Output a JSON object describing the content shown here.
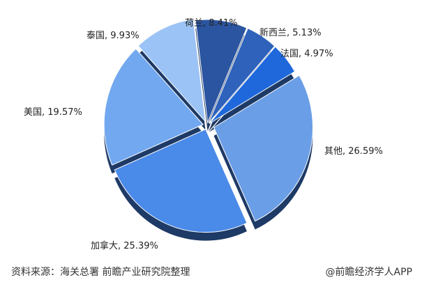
{
  "chart_data": {
    "type": "pie",
    "style": "3d-exploded",
    "slices": [
      {
        "name": "荷兰",
        "value": 8.41,
        "color": "#2b55a0"
      },
      {
        "name": "新西兰",
        "value": 5.13,
        "color": "#2e62bb"
      },
      {
        "name": "法国",
        "value": 4.97,
        "color": "#1f68dc"
      },
      {
        "name": "其他",
        "value": 26.59,
        "color": "#6a9ee6"
      },
      {
        "name": "加拿大",
        "value": 25.39,
        "color": "#4a8ae8"
      },
      {
        "name": "美国",
        "value": 19.57,
        "color": "#72a8ef"
      },
      {
        "name": "泰国",
        "value": 9.93,
        "color": "#9cc3f5"
      }
    ],
    "depth_color": "#1e3a66",
    "unit": "%"
  },
  "footer": {
    "source": "资料来源：海关总署 前瞻产业研究院整理",
    "brand": "@前瞻经济学人APP"
  }
}
